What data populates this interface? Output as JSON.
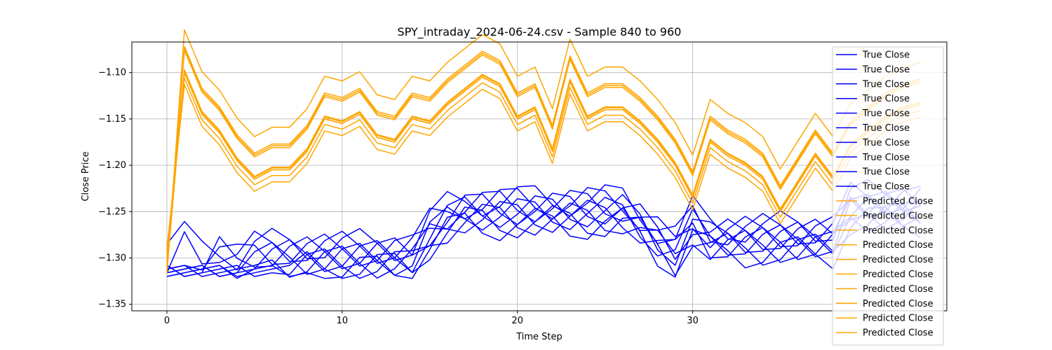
{
  "chart_data": {
    "type": "line",
    "title": "SPY_intraday_2024-06-24.csv - Sample 840 to 960",
    "xlabel": "Time Step",
    "ylabel": "Close Price",
    "xlim": [
      -2,
      44.5
    ],
    "ylim": [
      -1.357,
      -1.067
    ],
    "xticks": [
      0,
      10,
      20,
      30
    ],
    "xtick_labels": [
      "0",
      "10",
      "20",
      "30"
    ],
    "yticks": [
      -1.35,
      -1.3,
      -1.25,
      -1.2,
      -1.15,
      -1.1
    ],
    "ytick_labels": [
      "−1.35",
      "−1.30",
      "−1.25",
      "−1.20",
      "−1.15",
      "−1.10"
    ],
    "grid": true,
    "legend_position": "top-right",
    "colors": {
      "true": "#0000ff",
      "predicted": "#ffa500"
    },
    "true_base": [
      -1.285,
      -1.278,
      -1.291,
      -1.286,
      -1.297,
      -1.286,
      -1.286,
      -1.286,
      -1.286,
      -1.286,
      -1.286,
      -1.286,
      -1.286,
      -1.286,
      -1.286,
      -1.26,
      -1.245,
      -1.237,
      -1.237,
      -1.237,
      -1.237,
      -1.237,
      -1.237,
      -1.237,
      -1.237,
      -1.237,
      -1.237,
      -1.25,
      -1.267,
      -1.28,
      -1.25,
      -1.267,
      -1.267,
      -1.267,
      -1.267,
      -1.267,
      -1.267,
      -1.267,
      -1.267,
      -1.233,
      -1.233,
      -1.233,
      -1.233,
      -1.233
    ],
    "pred_base": [
      -1.305,
      -1.1,
      -1.145,
      -1.165,
      -1.195,
      -1.215,
      -1.205,
      -1.205,
      -1.185,
      -1.15,
      -1.155,
      -1.145,
      -1.17,
      -1.175,
      -1.15,
      -1.155,
      -1.135,
      -1.12,
      -1.105,
      -1.115,
      -1.15,
      -1.14,
      -1.185,
      -1.11,
      -1.15,
      -1.14,
      -1.14,
      -1.155,
      -1.175,
      -1.2,
      -1.235,
      -1.175,
      -1.19,
      -1.2,
      -1.215,
      -1.25,
      -1.22,
      -1.19,
      -1.215,
      -1.18,
      -1.165,
      -1.15,
      -1.14,
      -1.135
    ],
    "pred_offsets": [
      -0.013,
      -0.006,
      0.0,
      0.002,
      0.0,
      0.024,
      0.026,
      0.028,
      0.003,
      0.046
    ],
    "series": [
      {
        "name": "True Close",
        "kind": "true",
        "start": 0
      },
      {
        "name": "True Close",
        "kind": "true",
        "start": 1
      },
      {
        "name": "True Close",
        "kind": "true",
        "start": 2
      },
      {
        "name": "True Close",
        "kind": "true",
        "start": 3
      },
      {
        "name": "True Close",
        "kind": "true",
        "start": 4
      },
      {
        "name": "True Close",
        "kind": "true",
        "start": 5
      },
      {
        "name": "True Close",
        "kind": "true",
        "start": 6
      },
      {
        "name": "True Close",
        "kind": "true",
        "start": 7
      },
      {
        "name": "True Close",
        "kind": "true",
        "start": 8
      },
      {
        "name": "True Close",
        "kind": "true",
        "start": 9
      },
      {
        "name": "Predicted Close",
        "kind": "predicted",
        "idx": 0
      },
      {
        "name": "Predicted Close",
        "kind": "predicted",
        "idx": 1
      },
      {
        "name": "Predicted Close",
        "kind": "predicted",
        "idx": 2
      },
      {
        "name": "Predicted Close",
        "kind": "predicted",
        "idx": 3
      },
      {
        "name": "Predicted Close",
        "kind": "predicted",
        "idx": 4
      },
      {
        "name": "Predicted Close",
        "kind": "predicted",
        "idx": 5
      },
      {
        "name": "Predicted Close",
        "kind": "predicted",
        "idx": 6
      },
      {
        "name": "Predicted Close",
        "kind": "predicted",
        "idx": 7
      },
      {
        "name": "Predicted Close",
        "kind": "predicted",
        "idx": 8
      },
      {
        "name": "Predicted Close",
        "kind": "predicted",
        "idx": 9
      }
    ]
  }
}
